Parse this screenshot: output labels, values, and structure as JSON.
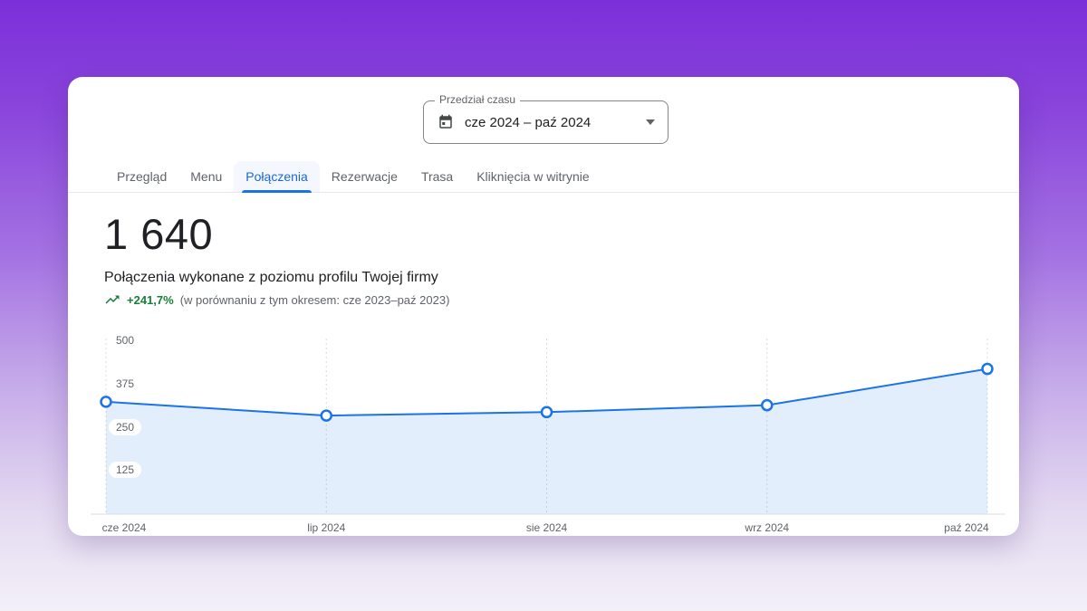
{
  "date_range_picker": {
    "label": "Przedział czasu",
    "value": "cze 2024 – paź 2024"
  },
  "tabs": {
    "items": [
      {
        "label": "Przegląd",
        "active": false
      },
      {
        "label": "Menu",
        "active": false
      },
      {
        "label": "Połączenia",
        "active": true
      },
      {
        "label": "Rezerwacje",
        "active": false
      },
      {
        "label": "Trasa",
        "active": false
      },
      {
        "label": "Kliknięcia w witrynie",
        "active": false
      }
    ]
  },
  "metric": {
    "value": "1 640",
    "description": "Połączenia wykonane z poziomu profilu Twojej firmy",
    "trend_delta": "+241,7%",
    "trend_comparison": "(w porównaniu z tym okresem: cze 2023–paź 2023)",
    "trend_color": "#188038"
  },
  "chart_data": {
    "type": "area",
    "title": "Połączenia wykonane z poziomu profilu Twojej firmy",
    "x": [
      "cze 2024",
      "lip 2024",
      "sie 2024",
      "wrz 2024",
      "paź 2024"
    ],
    "series": [
      {
        "name": "Połączenia",
        "values": [
          325,
          285,
          295,
          315,
          420
        ]
      }
    ],
    "yticks": [
      125,
      250,
      375,
      500
    ],
    "ylim": [
      0,
      500
    ],
    "grid": "vertical-dashed-at-points",
    "legend": "none",
    "line_color": "#1a73e8",
    "fill_color": "rgba(26,115,232,0.12)",
    "gridline_color": "#dadce0",
    "point_style": "hollow-circle"
  }
}
